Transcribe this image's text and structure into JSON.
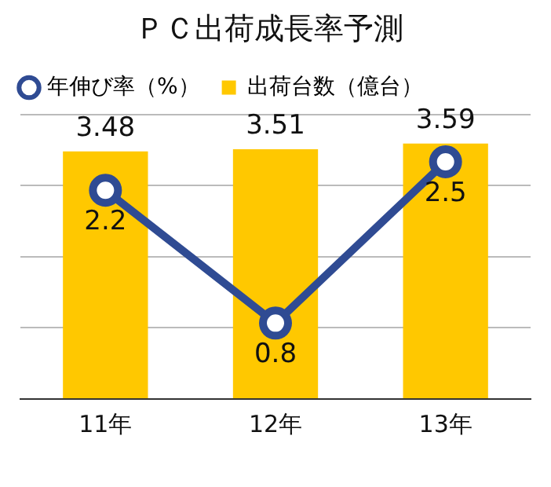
{
  "chart_data": {
    "type": "bar",
    "title": "ＰＣ出荷成長率予測",
    "categories": [
      "11年",
      "12年",
      "13年"
    ],
    "series": [
      {
        "name": "年伸び率（%）",
        "type": "line",
        "axis": "y2",
        "color": "#2f4b93",
        "values": [
          2.2,
          0.8,
          2.5
        ]
      },
      {
        "name": "出荷台数（億台）",
        "color": "#ffc800",
        "values": [
          3.48,
          3.51,
          3.59
        ]
      }
    ],
    "ylim": [
      0,
      4
    ],
    "yticks": [
      {
        "value": 0,
        "label": null
      },
      {
        "value": 1,
        "label": null
      },
      {
        "value": 2,
        "label": null
      },
      {
        "value": 3,
        "label": null
      },
      {
        "value": 4,
        "label": null
      }
    ],
    "y2lim": [
      0,
      3
    ],
    "tick_labels": "x",
    "grid": "y",
    "legend": "top left",
    "marker": "circle",
    "data_labels": true
  }
}
